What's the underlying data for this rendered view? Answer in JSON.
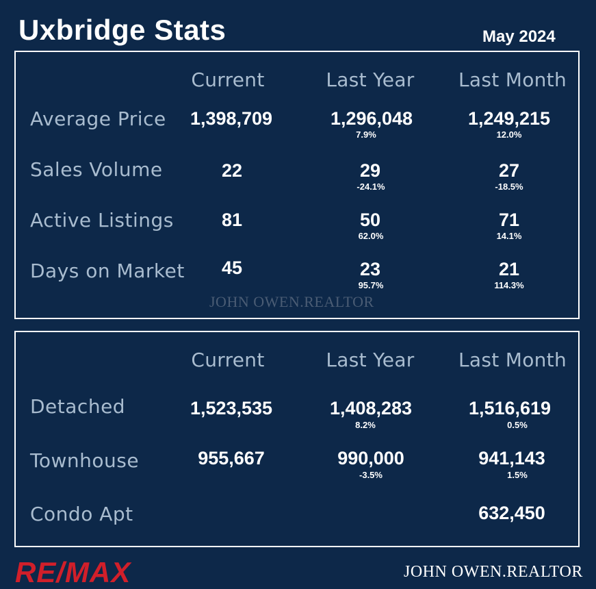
{
  "title": "Uxbridge Stats",
  "date": "May 2024",
  "headers": [
    "Current",
    "Last Year",
    "Last Month"
  ],
  "stats": [
    {
      "label": "Average Price",
      "current": "1,398,709",
      "last_year": "1,296,048",
      "last_year_pct": "7.9%",
      "last_month": "1,249,215",
      "last_month_pct": "12.0%"
    },
    {
      "label": "Sales Volume",
      "current": "22",
      "last_year": "29",
      "last_year_pct": "-24.1%",
      "last_month": "27",
      "last_month_pct": "-18.5%"
    },
    {
      "label": "Active Listings",
      "current": "81",
      "last_year": "50",
      "last_year_pct": "62.0%",
      "last_month": "71",
      "last_month_pct": "14.1%"
    },
    {
      "label": "Days on Market",
      "current": "45",
      "last_year": "23",
      "last_year_pct": "95.7%",
      "last_month": "21",
      "last_month_pct": "114.3%"
    }
  ],
  "watermark": "JOHN OWEN.REALTOR",
  "types": [
    {
      "label": "Detached",
      "current": "1,523,535",
      "last_year": "1,408,283",
      "last_year_pct": "8.2%",
      "last_month": "1,516,619",
      "last_month_pct": "0.5%"
    },
    {
      "label": "Townhouse",
      "current": "955,667",
      "last_year": "990,000",
      "last_year_pct": "-3.5%",
      "last_month": "941,143",
      "last_month_pct": "1.5%"
    },
    {
      "label": "Condo Apt",
      "current": "",
      "last_year": "",
      "last_year_pct": "",
      "last_month": "632,450",
      "last_month_pct": ""
    }
  ],
  "logo": "RE/MAX",
  "signature": "JOHN OWEN.REALTOR",
  "colors": {
    "background": "#0d2849",
    "label": "#a9bccf",
    "brand_red": "#d11f2a"
  }
}
